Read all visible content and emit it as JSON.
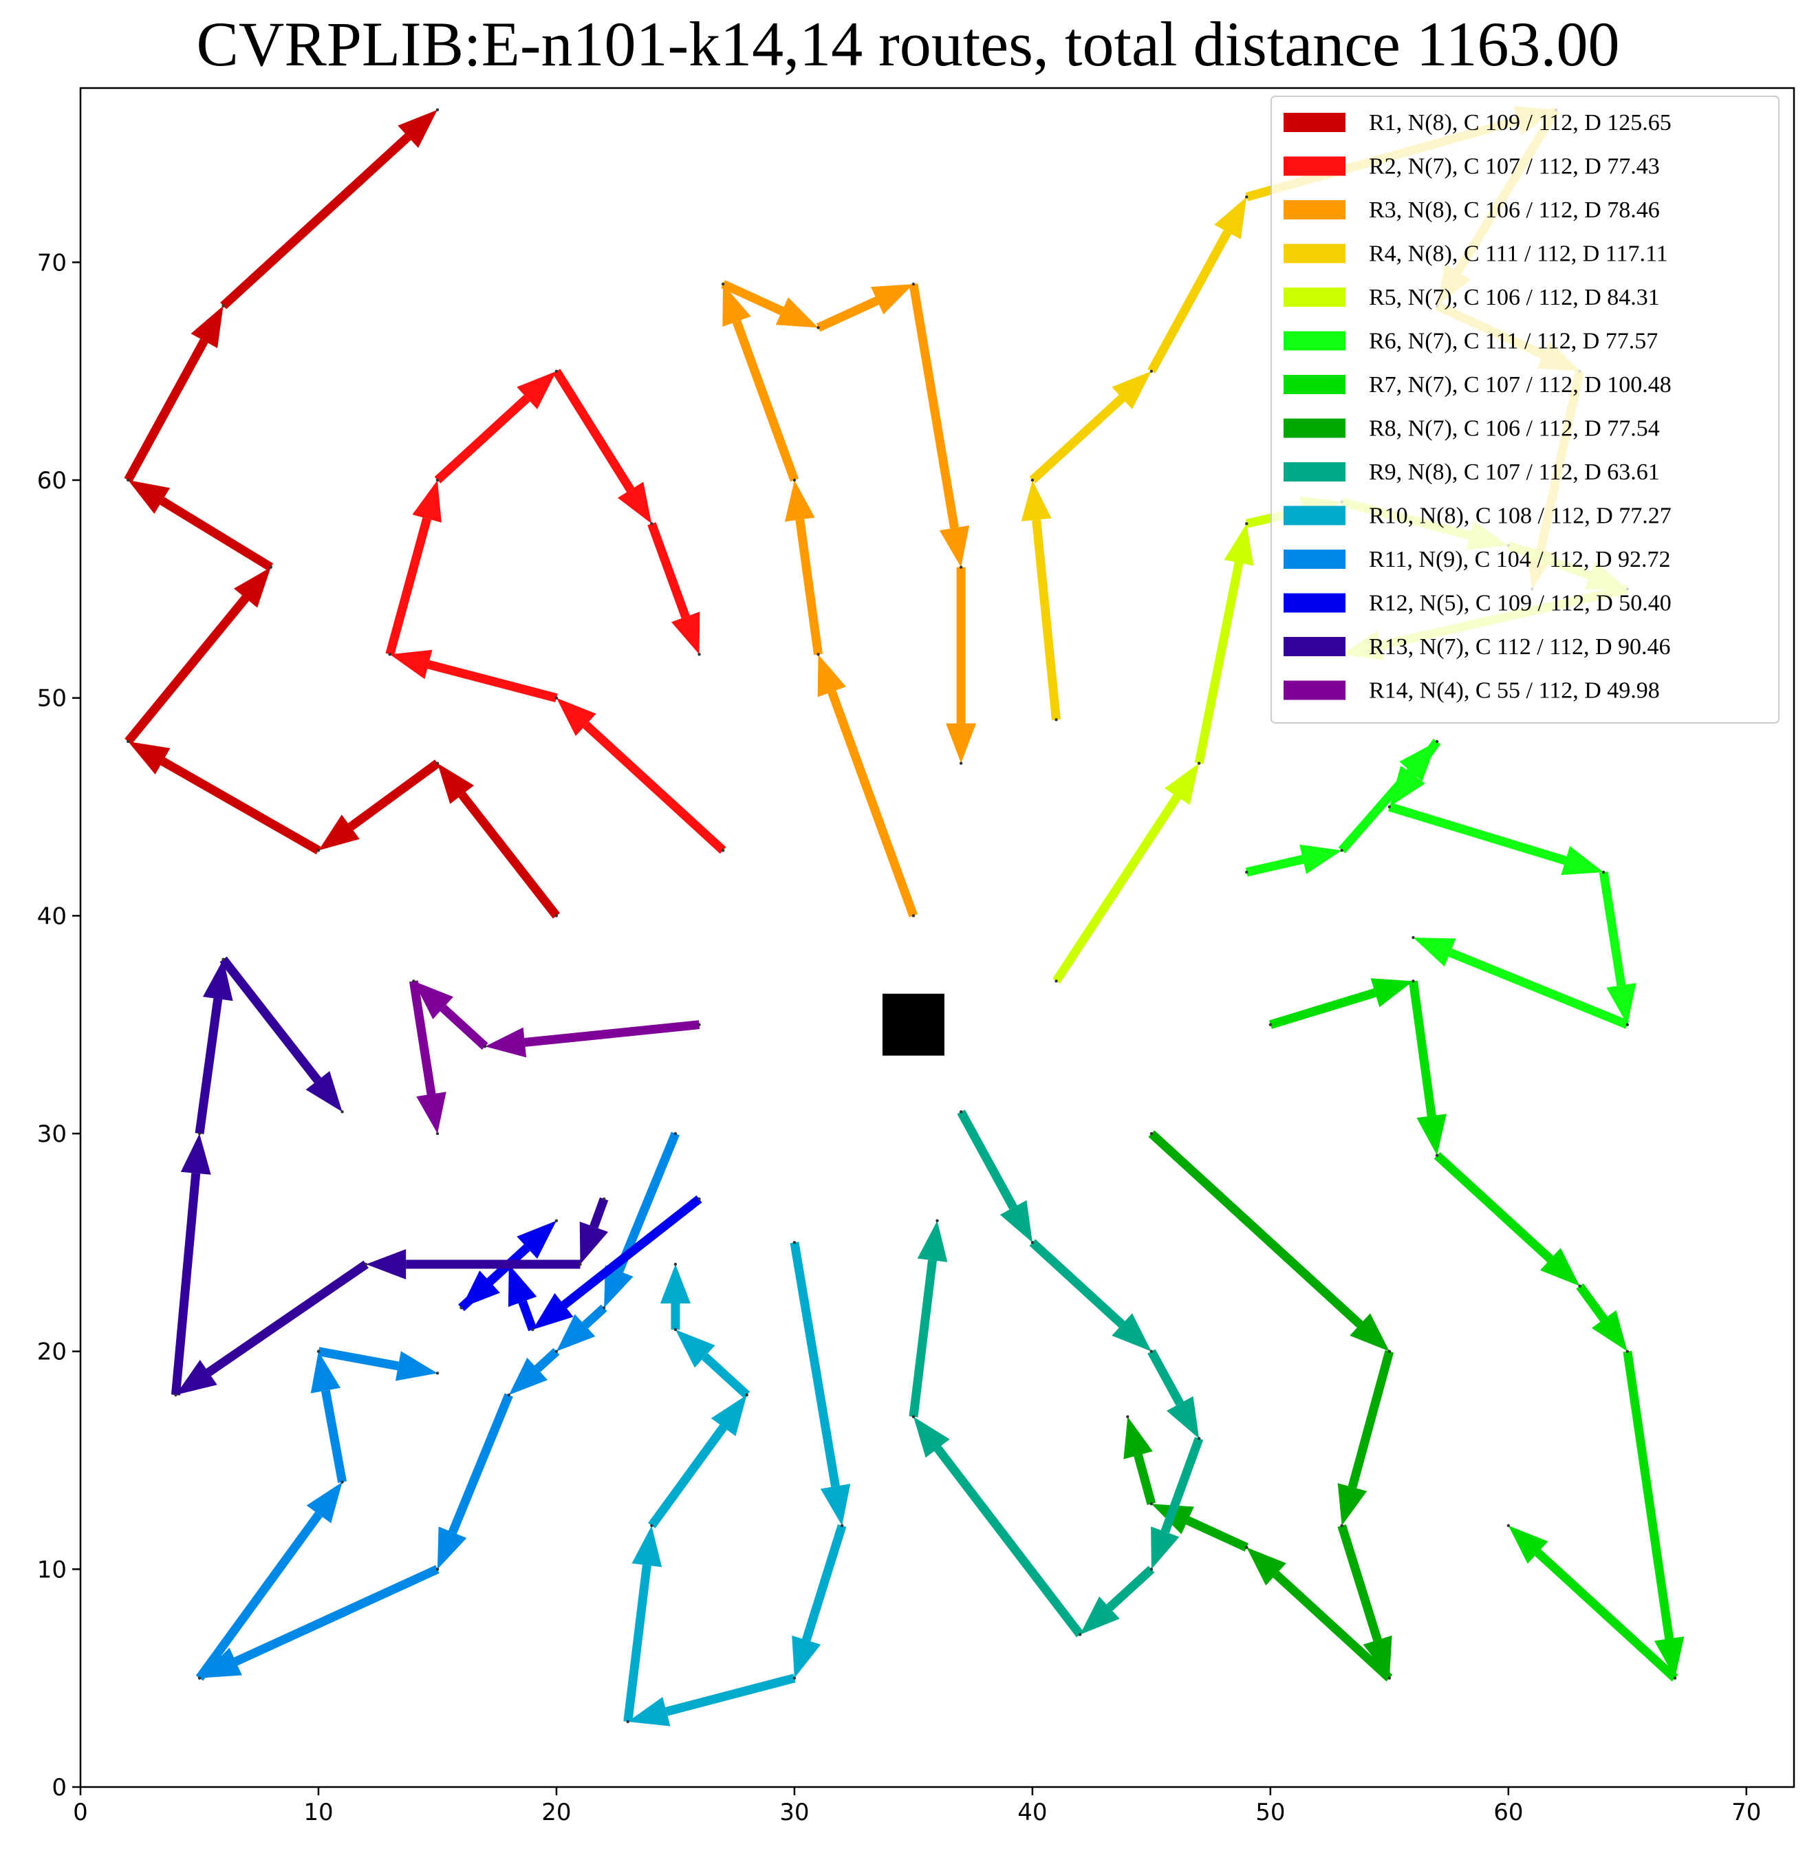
{
  "chart_data": {
    "type": "line",
    "title": "CVRPLIB:E-n101-k14,14 routes, total distance 1163.00",
    "xlabel": "",
    "ylabel": "",
    "xlim": [
      0,
      72
    ],
    "ylim": [
      0,
      78
    ],
    "x_ticks": [
      0,
      10,
      20,
      30,
      40,
      50,
      60,
      70
    ],
    "y_ticks": [
      0,
      10,
      20,
      30,
      40,
      50,
      60,
      70
    ],
    "x_tick_labels": [
      "0",
      "10",
      "20",
      "30",
      "40",
      "50",
      "60",
      "70"
    ],
    "y_tick_labels": [
      "0",
      "10",
      "20",
      "30",
      "40",
      "50",
      "60",
      "70"
    ],
    "legend_position": "top-right",
    "depot": [
      35,
      35
    ],
    "series": [
      {
        "name": "R1, N(8), C 109 / 112, D 125.65",
        "color": "#cc0000",
        "points": [
          [
            20,
            40
          ],
          [
            15,
            47
          ],
          [
            10,
            43
          ],
          [
            2,
            48
          ],
          [
            8,
            56
          ],
          [
            2,
            60
          ],
          [
            6,
            68
          ],
          [
            15,
            77
          ]
        ]
      },
      {
        "name": "R2, N(7), C 107 / 112, D 77.43",
        "color": "#ff1010",
        "points": [
          [
            27,
            43
          ],
          [
            20,
            50
          ],
          [
            13,
            52
          ],
          [
            15,
            60
          ],
          [
            20,
            65
          ],
          [
            24,
            58
          ],
          [
            26,
            52
          ]
        ]
      },
      {
        "name": "R3, N(8), C 106 / 112, D 78.46",
        "color": "#ff9900",
        "points": [
          [
            35,
            40
          ],
          [
            31,
            52
          ],
          [
            30,
            60
          ],
          [
            27,
            69
          ],
          [
            31,
            67
          ],
          [
            35,
            69
          ],
          [
            37,
            56
          ],
          [
            37,
            47
          ]
        ]
      },
      {
        "name": "R4, N(8), C 111 / 112, D 117.11",
        "color": "#f5d000",
        "points": [
          [
            41,
            49
          ],
          [
            40,
            60
          ],
          [
            45,
            65
          ],
          [
            49,
            73
          ],
          [
            62,
            77
          ],
          [
            57,
            68
          ],
          [
            63,
            65
          ],
          [
            61,
            55
          ]
        ]
      },
      {
        "name": "R5, N(7), C 106 / 112, D 84.31",
        "color": "#ccff00",
        "points": [
          [
            41,
            37
          ],
          [
            47,
            47
          ],
          [
            49,
            58
          ],
          [
            53,
            59
          ],
          [
            60,
            57
          ],
          [
            65,
            55
          ],
          [
            53,
            52
          ]
        ]
      },
      {
        "name": "R6, N(7), C 111 / 112, D 77.57",
        "color": "#11ff11",
        "points": [
          [
            49,
            42
          ],
          [
            53,
            43
          ],
          [
            57,
            48
          ],
          [
            55,
            45
          ],
          [
            64,
            42
          ],
          [
            65,
            35
          ],
          [
            56,
            39
          ]
        ]
      },
      {
        "name": "R7, N(7), C 107 / 112, D 100.48",
        "color": "#00dd00",
        "points": [
          [
            50,
            35
          ],
          [
            56,
            37
          ],
          [
            57,
            29
          ],
          [
            63,
            23
          ],
          [
            65,
            20
          ],
          [
            67,
            5
          ],
          [
            60,
            12
          ]
        ]
      },
      {
        "name": "R8, N(7), C 106 / 112, D 77.54",
        "color": "#00a900",
        "points": [
          [
            45,
            30
          ],
          [
            55,
            20
          ],
          [
            53,
            12
          ],
          [
            55,
            5
          ],
          [
            49,
            11
          ],
          [
            45,
            13
          ],
          [
            44,
            17
          ]
        ]
      },
      {
        "name": "R9, N(8), C 107 / 112, D 63.61",
        "color": "#00aa88",
        "points": [
          [
            37,
            31
          ],
          [
            40,
            25
          ],
          [
            45,
            20
          ],
          [
            47,
            16
          ],
          [
            45,
            10
          ],
          [
            42,
            7
          ],
          [
            35,
            17
          ],
          [
            36,
            26
          ]
        ]
      },
      {
        "name": "R10, N(8), C 108 / 112, D 77.27",
        "color": "#00aacc",
        "points": [
          [
            30,
            25
          ],
          [
            32,
            12
          ],
          [
            30,
            5
          ],
          [
            23,
            3
          ],
          [
            24,
            12
          ],
          [
            28,
            18
          ],
          [
            25,
            21
          ],
          [
            25,
            24
          ]
        ]
      },
      {
        "name": "R11, N(9), C 104 / 112, D 92.72",
        "color": "#0088e6",
        "points": [
          [
            25,
            30
          ],
          [
            22,
            22
          ],
          [
            20,
            20
          ],
          [
            18,
            18
          ],
          [
            15,
            10
          ],
          [
            5,
            5
          ],
          [
            11,
            14
          ],
          [
            10,
            20
          ],
          [
            15,
            19
          ]
        ]
      },
      {
        "name": "R12, N(5), C 109 / 112, D 50.40",
        "color": "#0000ee",
        "points": [
          [
            26,
            27
          ],
          [
            19,
            21
          ],
          [
            18,
            24
          ],
          [
            16,
            22
          ],
          [
            20,
            26
          ]
        ]
      },
      {
        "name": "R13, N(7), C 112 / 112, D 90.46",
        "color": "#330099",
        "points": [
          [
            22,
            27
          ],
          [
            21,
            24
          ],
          [
            12,
            24
          ],
          [
            4,
            18
          ],
          [
            5,
            30
          ],
          [
            6,
            38
          ],
          [
            11,
            31
          ]
        ]
      },
      {
        "name": "R14, N(4), C 55 / 112, D 49.98",
        "color": "#7f0099",
        "points": [
          [
            26,
            35
          ],
          [
            17,
            34
          ],
          [
            14,
            37
          ],
          [
            15,
            30
          ]
        ]
      }
    ]
  }
}
